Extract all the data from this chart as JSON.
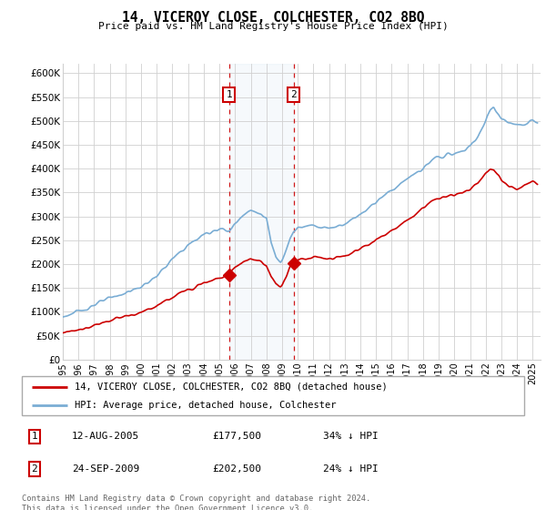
{
  "title": "14, VICEROY CLOSE, COLCHESTER, CO2 8BQ",
  "subtitle": "Price paid vs. HM Land Registry's House Price Index (HPI)",
  "ylabel_ticks": [
    "£0",
    "£50K",
    "£100K",
    "£150K",
    "£200K",
    "£250K",
    "£300K",
    "£350K",
    "£400K",
    "£450K",
    "£500K",
    "£550K",
    "£600K"
  ],
  "ytick_values": [
    0,
    50000,
    100000,
    150000,
    200000,
    250000,
    300000,
    350000,
    400000,
    450000,
    500000,
    550000,
    600000
  ],
  "ylim": [
    0,
    620000
  ],
  "xlim_start": 1995.0,
  "xlim_end": 2025.5,
  "xtick_years": [
    1995,
    1996,
    1997,
    1998,
    1999,
    2000,
    2001,
    2002,
    2003,
    2004,
    2005,
    2006,
    2007,
    2008,
    2009,
    2010,
    2011,
    2012,
    2013,
    2014,
    2015,
    2016,
    2017,
    2018,
    2019,
    2020,
    2021,
    2022,
    2023,
    2024,
    2025
  ],
  "hpi_color": "#7aadd4",
  "price_color": "#cc0000",
  "sale1_x": 2005.61,
  "sale1_y": 177500,
  "sale2_x": 2009.73,
  "sale2_y": 202500,
  "sale1_date": "12-AUG-2005",
  "sale1_price": "£177,500",
  "sale1_hpi": "34% ↓ HPI",
  "sale2_date": "24-SEP-2009",
  "sale2_price": "£202,500",
  "sale2_hpi": "24% ↓ HPI",
  "legend_line1": "14, VICEROY CLOSE, COLCHESTER, CO2 8BQ (detached house)",
  "legend_line2": "HPI: Average price, detached house, Colchester",
  "footer": "Contains HM Land Registry data © Crown copyright and database right 2024.\nThis data is licensed under the Open Government Licence v3.0.",
  "shade_x1": 2005.61,
  "shade_x2": 2009.73
}
